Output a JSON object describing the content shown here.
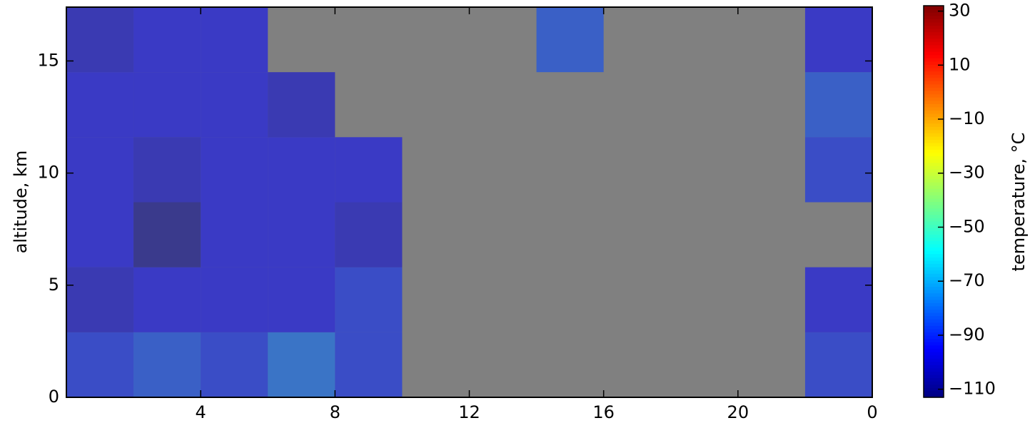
{
  "chart_data": {
    "type": "heatmap",
    "ylabel": "altitude, km",
    "colorbar_label": "temperature, °C",
    "colormap": "jet",
    "missing_color": "#808080",
    "xlim": [
      0,
      24
    ],
    "ylim": [
      0,
      17.4
    ],
    "xticks": [
      4,
      8,
      12,
      16,
      20,
      {
        "value": 24,
        "label": "0"
      }
    ],
    "yticks": [
      0,
      5,
      10,
      15
    ],
    "clim": [
      -113,
      32
    ],
    "cticks": [
      30,
      10,
      {
        "value": -10,
        "label": "−10"
      },
      {
        "value": -30,
        "label": "−30"
      },
      {
        "value": -50,
        "label": "−50"
      },
      {
        "value": -70,
        "label": "−70"
      },
      {
        "value": -90,
        "label": "−90"
      },
      {
        "value": -110,
        "label": "−110"
      }
    ],
    "xbins": [
      0,
      2,
      4,
      6,
      8,
      10,
      12,
      14,
      16,
      18,
      20,
      22,
      24
    ],
    "ybins": [
      0,
      2.9,
      5.8,
      8.7,
      11.6,
      14.5,
      17.4
    ],
    "values": [
      [
        -90,
        -85,
        -90,
        -80,
        -90,
        null,
        null,
        null,
        null,
        null,
        null,
        -90
      ],
      [
        -100,
        -95,
        -95,
        -95,
        -90,
        null,
        null,
        null,
        null,
        null,
        null,
        -95
      ],
      [
        -95,
        -110,
        -95,
        -95,
        -100,
        null,
        null,
        null,
        null,
        null,
        null,
        null
      ],
      [
        -95,
        -100,
        -95,
        -95,
        -95,
        null,
        null,
        null,
        null,
        null,
        null,
        -90
      ],
      [
        -95,
        -95,
        -95,
        -100,
        null,
        null,
        null,
        null,
        null,
        null,
        null,
        -85
      ],
      [
        -100,
        -95,
        -95,
        null,
        null,
        null,
        null,
        -85,
        null,
        null,
        null,
        -95
      ]
    ]
  }
}
